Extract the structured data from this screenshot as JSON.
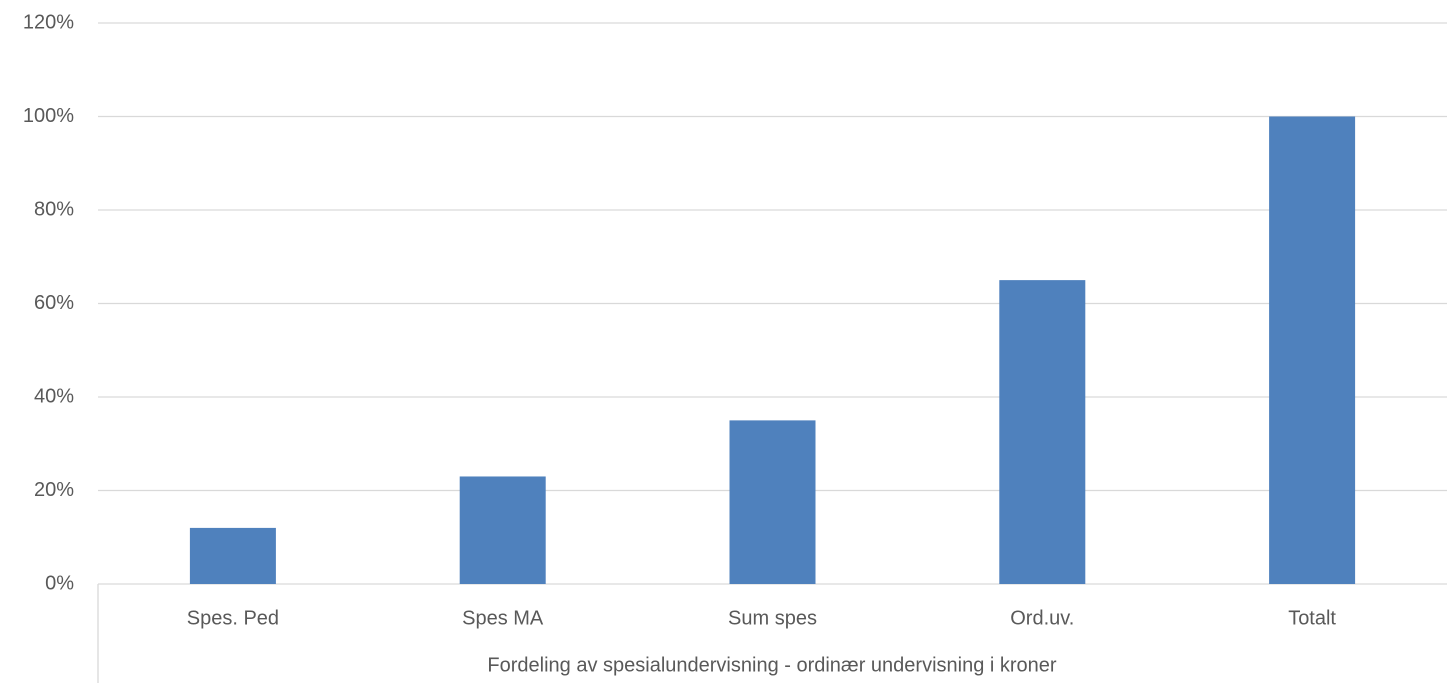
{
  "chart_data": {
    "type": "bar",
    "x_label": "Fordeling av spesialundervisning - ordinær undervisning i kroner",
    "categories": [
      "Spes. Ped",
      "Spes MA",
      "Sum spes",
      "Ord.uv.",
      "Totalt"
    ],
    "values": [
      12,
      23,
      35,
      65,
      100
    ],
    "color": "#4f81bd",
    "ylim": [
      0,
      120
    ],
    "yticks": [
      {
        "value": 0,
        "label": "0%"
      },
      {
        "value": 20,
        "label": "20%"
      },
      {
        "value": 40,
        "label": "40%"
      },
      {
        "value": 60,
        "label": "60%"
      },
      {
        "value": 80,
        "label": "80%"
      },
      {
        "value": 100,
        "label": "100%"
      },
      {
        "value": 120,
        "label": "120%"
      }
    ],
    "grid": true
  }
}
